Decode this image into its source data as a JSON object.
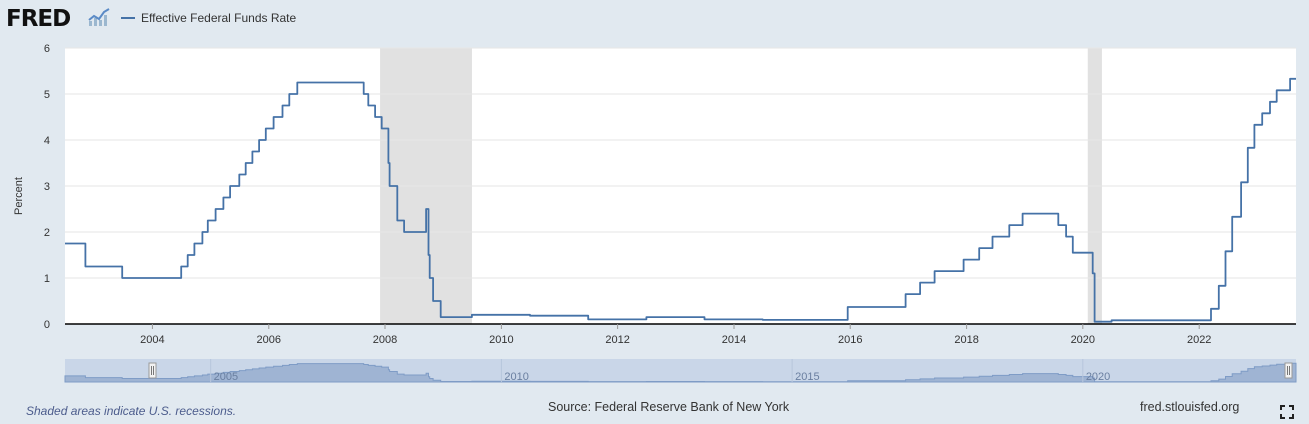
{
  "header": {
    "logo_text": "FRED",
    "logo_icon": "trend-chart-icon"
  },
  "footer": {
    "recession_note": "Shaded areas indicate U.S. recessions.",
    "source": "Source: Federal Reserve Bank of New York",
    "site": "fred.stlouisfed.org",
    "fullscreen_icon": "fullscreen-icon"
  },
  "colors": {
    "series": "#4572a7",
    "recession": "#e1e1e1",
    "page": "#e1e9f0",
    "navigator_fill": "#9fb4d3",
    "navigator_bg": "#c9d6e8"
  },
  "chart_data": {
    "type": "line",
    "title": "",
    "xlabel": "",
    "ylabel": "Percent",
    "xlim": [
      "2002-07-01",
      "2023-09-01"
    ],
    "ylim": [
      0,
      6
    ],
    "grid": true,
    "legend_position": "top-left",
    "y_ticks": [
      "0",
      "1",
      "2",
      "3",
      "4",
      "5",
      "6"
    ],
    "x_ticks": [
      "2004",
      "2006",
      "2008",
      "2010",
      "2012",
      "2014",
      "2016",
      "2018",
      "2020",
      "2022"
    ],
    "navigator_ticks": [
      "2005",
      "2010",
      "2015",
      "2020"
    ],
    "recessions": [
      [
        "2007-12-01",
        "2009-06-30"
      ],
      [
        "2020-02-01",
        "2020-04-30"
      ]
    ],
    "series": [
      {
        "name": "Effective Federal Funds Rate",
        "x": [
          "2002-07-01",
          "2002-11-05",
          "2002-11-06",
          "2003-06-24",
          "2003-06-25",
          "2004-06-29",
          "2004-06-30",
          "2004-08-10",
          "2004-09-21",
          "2004-11-10",
          "2004-12-14",
          "2005-02-01",
          "2005-03-22",
          "2005-05-03",
          "2005-06-30",
          "2005-08-09",
          "2005-09-20",
          "2005-11-01",
          "2005-12-13",
          "2006-01-31",
          "2006-03-28",
          "2006-05-10",
          "2006-06-29",
          "2007-08-09",
          "2007-08-20",
          "2007-09-18",
          "2007-10-31",
          "2007-12-11",
          "2008-01-22",
          "2008-01-30",
          "2008-03-18",
          "2008-04-30",
          "2008-09-15",
          "2008-09-30",
          "2008-10-08",
          "2008-10-29",
          "2008-12-16",
          "2009-06-30",
          "2010-06-30",
          "2011-06-30",
          "2012-06-30",
          "2013-06-30",
          "2014-06-30",
          "2015-12-16",
          "2016-12-14",
          "2017-03-15",
          "2017-06-14",
          "2017-12-13",
          "2018-03-21",
          "2018-06-13",
          "2018-09-26",
          "2018-12-19",
          "2019-07-31",
          "2019-09-18",
          "2019-10-30",
          "2020-03-03",
          "2020-03-15",
          "2020-06-30",
          "2021-06-30",
          "2022-03-16",
          "2022-05-04",
          "2022-06-15",
          "2022-07-27",
          "2022-09-21",
          "2022-11-02",
          "2022-12-14",
          "2023-02-01",
          "2023-03-22",
          "2023-05-03",
          "2023-07-26",
          "2023-09-01"
        ],
        "values": [
          1.75,
          1.75,
          1.25,
          1.25,
          1.0,
          1.0,
          1.25,
          1.5,
          1.75,
          2.0,
          2.25,
          2.5,
          2.75,
          3.0,
          3.25,
          3.5,
          3.75,
          4.0,
          4.25,
          4.5,
          4.75,
          5.0,
          5.25,
          5.25,
          5.0,
          4.75,
          4.5,
          4.25,
          3.5,
          3.0,
          2.25,
          2.0,
          2.5,
          1.5,
          1.0,
          0.5,
          0.15,
          0.2,
          0.18,
          0.1,
          0.15,
          0.1,
          0.09,
          0.37,
          0.65,
          0.9,
          1.15,
          1.4,
          1.65,
          1.9,
          2.15,
          2.4,
          2.15,
          1.9,
          1.55,
          1.1,
          0.05,
          0.08,
          0.08,
          0.33,
          0.83,
          1.58,
          2.33,
          3.08,
          3.83,
          4.33,
          4.58,
          4.83,
          5.08,
          5.33,
          5.33
        ]
      }
    ]
  }
}
